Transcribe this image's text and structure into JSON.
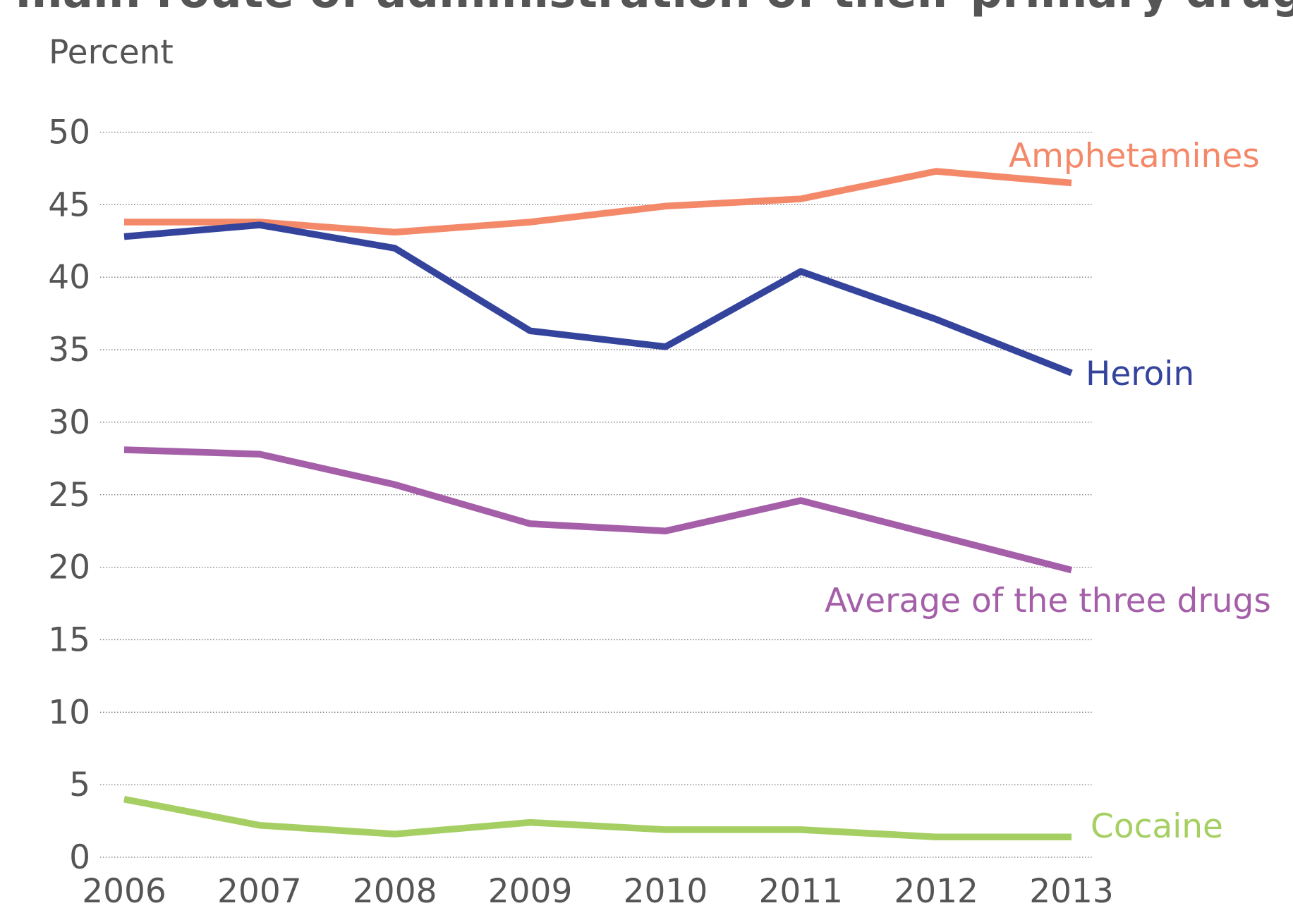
{
  "chart_data": {
    "type": "line",
    "title": "main route of administration of their primary drug",
    "y_label": "Percent",
    "categories": [
      "2006",
      "2007",
      "2008",
      "2009",
      "2010",
      "2011",
      "2012",
      "2013"
    ],
    "series": [
      {
        "name": "Amphetamines",
        "color": "#f4896a",
        "values": [
          43.8,
          43.8,
          43.1,
          43.8,
          44.9,
          45.4,
          47.3,
          46.5
        ]
      },
      {
        "name": "Heroin",
        "color": "#34449c",
        "values": [
          42.8,
          43.6,
          42.0,
          36.3,
          35.2,
          40.4,
          37.1,
          33.4
        ]
      },
      {
        "name": "Average of the three drugs",
        "color": "#a45fa8",
        "values": [
          28.1,
          27.8,
          25.7,
          23.0,
          22.5,
          24.6,
          22.2,
          19.8
        ]
      },
      {
        "name": "Cocaine",
        "color": "#a6cf63",
        "values": [
          4.0,
          2.2,
          1.6,
          2.4,
          1.9,
          1.9,
          1.4,
          1.4
        ]
      }
    ],
    "ylim": [
      0,
      50
    ],
    "yticks": [
      0,
      5,
      10,
      15,
      20,
      25,
      30,
      35,
      40,
      45,
      50
    ],
    "grid": true
  }
}
